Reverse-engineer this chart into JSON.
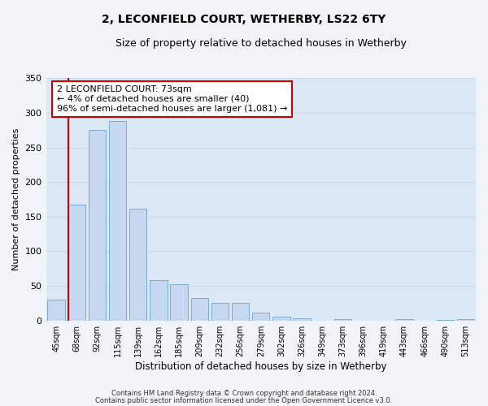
{
  "title": "2, LECONFIELD COURT, WETHERBY, LS22 6TY",
  "subtitle": "Size of property relative to detached houses in Wetherby",
  "xlabel": "Distribution of detached houses by size in Wetherby",
  "ylabel": "Number of detached properties",
  "bar_labels": [
    "45sqm",
    "68sqm",
    "92sqm",
    "115sqm",
    "139sqm",
    "162sqm",
    "185sqm",
    "209sqm",
    "232sqm",
    "256sqm",
    "279sqm",
    "302sqm",
    "326sqm",
    "349sqm",
    "373sqm",
    "396sqm",
    "419sqm",
    "443sqm",
    "466sqm",
    "490sqm",
    "513sqm"
  ],
  "bar_values": [
    30,
    168,
    275,
    288,
    162,
    58,
    53,
    33,
    26,
    26,
    11,
    5,
    3,
    0,
    2,
    0,
    0,
    2,
    0,
    1,
    2
  ],
  "bar_color": "#c5d8ef",
  "bar_edge_color": "#7aadd4",
  "property_line_color": "#cc0000",
  "annotation_box_color": "#ffffff",
  "annotation_box_edge": "#cc0000",
  "property_line_label": "2 LECONFIELD COURT: 73sqm",
  "annotation_line1": "← 4% of detached houses are smaller (40)",
  "annotation_line2": "96% of semi-detached houses are larger (1,081) →",
  "ylim": [
    0,
    350
  ],
  "yticks": [
    0,
    50,
    100,
    150,
    200,
    250,
    300,
    350
  ],
  "grid_color": "#c8d8e8",
  "plot_bg_color": "#dce8f5",
  "fig_bg_color": "#f0f4f8",
  "footer_line1": "Contains HM Land Registry data © Crown copyright and database right 2024.",
  "footer_line2": "Contains public sector information licensed under the Open Government Licence v3.0."
}
